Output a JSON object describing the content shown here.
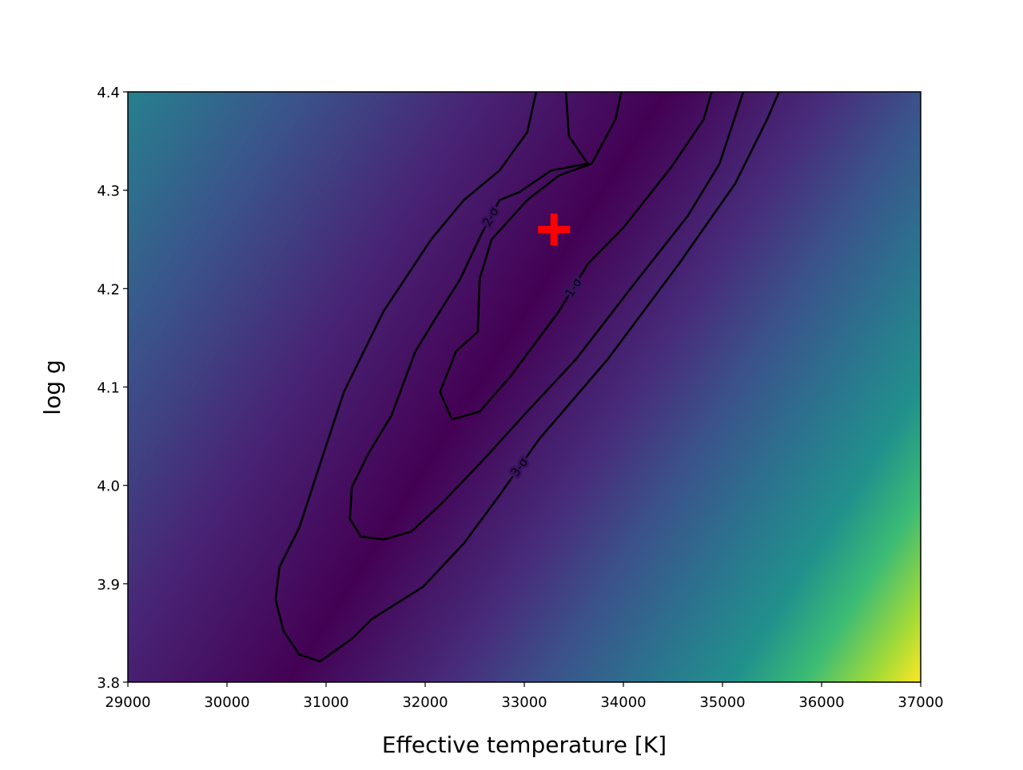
{
  "chart_data": {
    "type": "contour",
    "xlabel": "Effective temperature [K]",
    "ylabel": "log g",
    "xlim": [
      29000,
      37000
    ],
    "ylim": [
      3.8,
      4.4
    ],
    "xticks": [
      29000,
      30000,
      31000,
      32000,
      33000,
      34000,
      35000,
      36000,
      37000
    ],
    "yticks": [
      3.8,
      3.9,
      {
        "value": 4,
        "label": "4.0"
      },
      4.1,
      4.2,
      4.3,
      4.4
    ],
    "series": [
      {
        "name": "1-σ",
        "color": "#000000",
        "x": [
          33980,
          33920,
          33680,
          33350,
          33030,
          32670,
          32550,
          32530,
          32310,
          32150,
          32270,
          32550,
          32870,
          33350,
          33640,
          34000,
          34480,
          34810,
          34890
        ],
        "y": [
          4.4,
          4.372,
          4.327,
          4.315,
          4.29,
          4.25,
          4.21,
          4.156,
          4.136,
          4.095,
          4.067,
          4.075,
          4.112,
          4.177,
          4.225,
          4.262,
          4.323,
          4.372,
          4.4
        ]
      },
      {
        "name": "2-σ",
        "color": "#000000",
        "x": [
          33420,
          33450,
          33640,
          33270,
          32950,
          32750,
          32570,
          32350,
          32100,
          31900,
          31660,
          31420,
          31260,
          31240,
          31350,
          31580,
          31860,
          32150,
          32550,
          33030,
          33520,
          34080,
          34650,
          34970,
          35210
        ],
        "y": [
          4.4,
          4.355,
          4.327,
          4.32,
          4.298,
          4.29,
          4.256,
          4.209,
          4.169,
          4.136,
          4.071,
          4.031,
          3.998,
          3.966,
          3.948,
          3.945,
          3.953,
          3.98,
          4.022,
          4.075,
          4.128,
          4.201,
          4.274,
          4.327,
          4.4
        ]
      },
      {
        "name": "3-σ",
        "color": "#000000",
        "x": [
          33120,
          33030,
          32750,
          32390,
          32060,
          31580,
          31180,
          30940,
          30730,
          30530,
          30490,
          30570,
          30730,
          30940,
          31260,
          31460,
          31980,
          32390,
          32750,
          33150,
          33840,
          34560,
          35130,
          35450,
          35570
        ],
        "y": [
          4.4,
          4.359,
          4.32,
          4.29,
          4.25,
          4.177,
          4.095,
          4.022,
          3.957,
          3.917,
          3.884,
          3.852,
          3.828,
          3.821,
          3.844,
          3.864,
          3.897,
          3.941,
          3.99,
          4.047,
          4.128,
          4.225,
          4.307,
          4.372,
          4.4
        ]
      }
    ],
    "best_fit": {
      "x": 33300,
      "y": 4.26,
      "color": "#ff0000"
    }
  }
}
